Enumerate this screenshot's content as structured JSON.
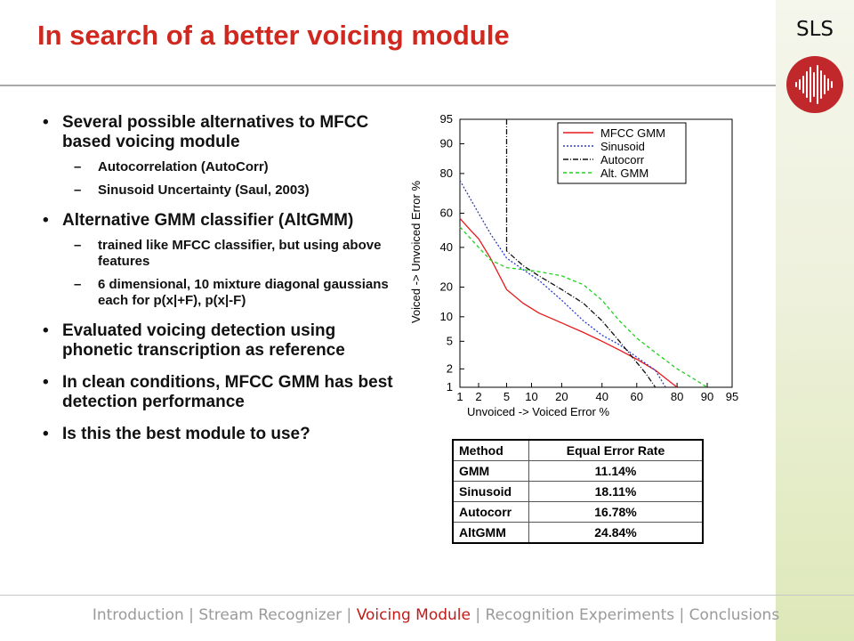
{
  "slide": {
    "title": "In search of a better voicing module",
    "logo_text": "SLS",
    "logo_icon": "waveform-icon"
  },
  "bullets": [
    {
      "text": "Several possible alternatives to MFCC based voicing module",
      "subs": [
        "Autocorrelation (AutoCorr)",
        "Sinusoid Uncertainty (Saul, 2003)"
      ]
    },
    {
      "text": "Alternative GMM classifier (AltGMM)",
      "subs": [
        "trained like MFCC classifier, but using above features",
        "6 dimensional, 10 mixture diagonal gaussians each for p(x|+F), p(x|-F)"
      ]
    },
    {
      "text": "Evaluated voicing detection using phonetic transcription as reference",
      "subs": []
    },
    {
      "text": "In clean conditions, MFCC GMM has best detection performance",
      "subs": []
    },
    {
      "text": "Is this the best module to use?",
      "subs": []
    }
  ],
  "chart_data": {
    "type": "line",
    "xlabel": "Unvoiced -> Voiced Error %",
    "ylabel": "Voiced -> Unvoiced Error %",
    "x_ticks": [
      "1",
      "2",
      "5",
      "10",
      "20",
      "40",
      "60",
      "80",
      "90",
      "95"
    ],
    "y_ticks": [
      "1",
      "2",
      "5",
      "10",
      "20",
      "40",
      "60",
      "80",
      "90",
      "95"
    ],
    "xlim": [
      1,
      95
    ],
    "ylim": [
      1,
      95
    ],
    "scale": "normal-deviate (DET)",
    "grid": false,
    "legend_position": "top-right",
    "series": [
      {
        "name": "MFCC GMM",
        "color": "#e8191b",
        "dash": "solid",
        "x": [
          1,
          1.5,
          2,
          3,
          5,
          8,
          12,
          20,
          30,
          40,
          50,
          60,
          70,
          80
        ],
        "y": [
          57,
          50,
          45,
          34,
          19,
          14,
          11,
          8.5,
          6.5,
          5,
          3.8,
          2.8,
          1.9,
          1
        ]
      },
      {
        "name": "Sinusoid",
        "color": "#2a3bd6",
        "dash": "dotted",
        "x": [
          1,
          2,
          3,
          5,
          8,
          12,
          20,
          30,
          40,
          50,
          60,
          70,
          75
        ],
        "y": [
          77,
          60,
          48,
          34,
          28,
          23,
          15,
          9,
          6,
          4.5,
          3,
          1.9,
          1
        ]
      },
      {
        "name": "Autocorr",
        "color": "#111111",
        "dash": "dash-dot",
        "x": [
          5,
          5,
          8,
          12,
          20,
          30,
          40,
          50,
          60,
          65,
          70
        ],
        "y": [
          95,
          38,
          30,
          25,
          19,
          14,
          9,
          5,
          2.5,
          1.7,
          1
        ]
      },
      {
        "name": "Alt. GMM",
        "color": "#1fd21f",
        "dash": "dashed",
        "x": [
          1,
          2,
          3,
          5,
          8,
          12,
          20,
          30,
          40,
          50,
          60,
          70,
          80,
          85,
          90
        ],
        "y": [
          52,
          40,
          33,
          29,
          28,
          27,
          25,
          21,
          15,
          9,
          5.5,
          3.5,
          2,
          1.5,
          1
        ]
      }
    ]
  },
  "table": {
    "headers": [
      "Method",
      "Equal Error Rate"
    ],
    "rows": [
      [
        "GMM",
        "11.14%"
      ],
      [
        "Sinusoid",
        "18.11%"
      ],
      [
        "Autocorr",
        "16.78%"
      ],
      [
        "AltGMM",
        "24.84%"
      ]
    ]
  },
  "footer": {
    "items": [
      {
        "label": "Introduction",
        "active": false
      },
      {
        "label": "Stream Recognizer",
        "active": false
      },
      {
        "label": "Voicing Module",
        "active": true
      },
      {
        "label": "Recognition Experiments",
        "active": false
      },
      {
        "label": "Conclusions",
        "active": false
      }
    ],
    "separator": "|"
  },
  "colors": {
    "title": "#d0281f",
    "logo": "#c0282c",
    "footer_text": "#9a9a9a",
    "footer_active": "#c21b17"
  }
}
